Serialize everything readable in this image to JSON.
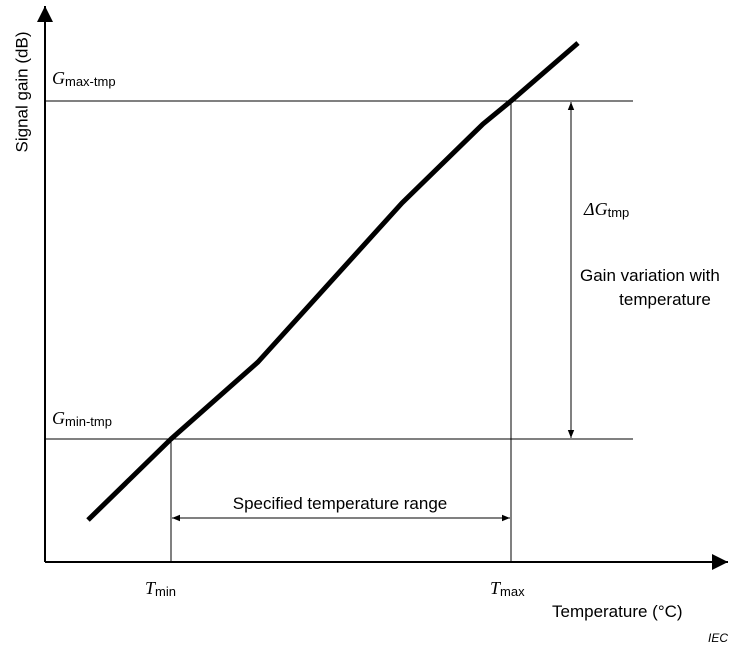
{
  "y_axis_label": "Signal gain  (dB)",
  "x_axis_label": "Temperature   (°C)",
  "g_max": {
    "symbol": "G",
    "subscript": "max-tmp"
  },
  "g_min": {
    "symbol": "G",
    "subscript": "min-tmp"
  },
  "delta_g": {
    "symbol": "ΔG",
    "subscript": "tmp"
  },
  "gain_variation": [
    "Gain variation with",
    "temperature"
  ],
  "range_label": "Specified temperature range",
  "t_min": {
    "symbol": "T",
    "subscript": "min"
  },
  "t_max": {
    "symbol": "T",
    "subscript": "max"
  },
  "source": "IEC"
}
